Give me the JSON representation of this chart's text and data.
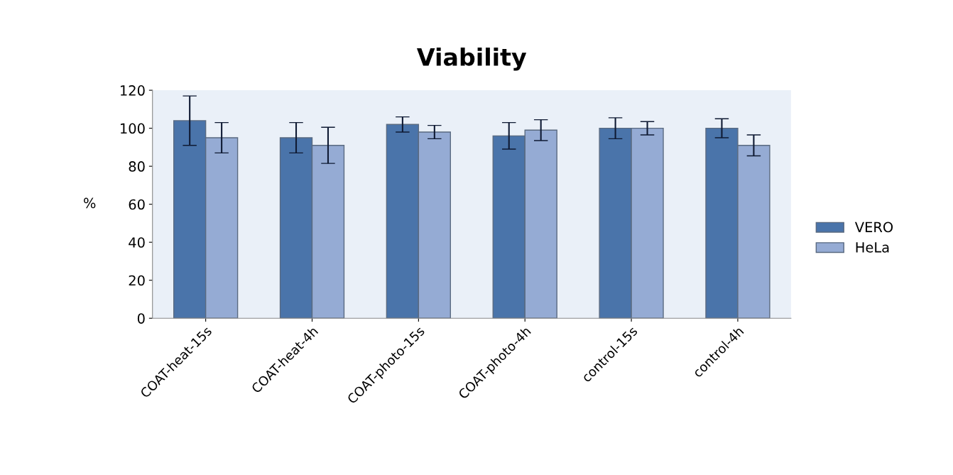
{
  "chart_data": {
    "type": "bar",
    "title": "Viability",
    "ylabel": "%",
    "categories": [
      "COAT-heat-15s",
      "COAT-heat-4h",
      "COAT-photo-15s",
      "COAT-photo-4h",
      "control-15s",
      "control-4h"
    ],
    "series": [
      {
        "name": "VERO",
        "color": "#4a74aa",
        "values": [
          104,
          95,
          102,
          96,
          100,
          100
        ],
        "errors": [
          13,
          8,
          4,
          7,
          5.5,
          5
        ]
      },
      {
        "name": "HeLa",
        "color": "#95abd4",
        "values": [
          95,
          91,
          98,
          99,
          100,
          91
        ],
        "errors": [
          8,
          9.5,
          3.5,
          5.5,
          3.5,
          5.5
        ]
      }
    ],
    "ylim": [
      0,
      120
    ],
    "yticks": [
      0,
      20,
      40,
      60,
      80,
      100,
      120
    ],
    "grid": false,
    "legend": "right"
  }
}
